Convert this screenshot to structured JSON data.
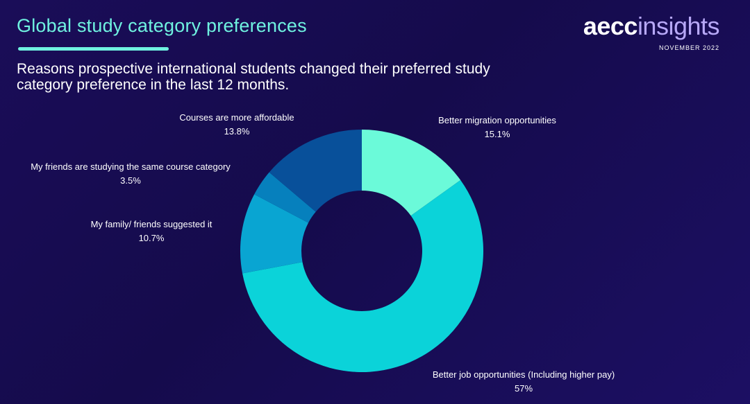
{
  "header": {
    "title": "Global study category preferences",
    "subtitle": "Reasons prospective international students changed their preferred study category preference in the last 12 months."
  },
  "brand": {
    "name_part1": "aecc",
    "name_part2": "insights",
    "date": "NOVEMBER 2022"
  },
  "colors": {
    "background": "#170c50",
    "accent": "#6ff2e0"
  },
  "chart_data": {
    "type": "pie",
    "donut": true,
    "title": "Reasons prospective international students changed their preferred study category preference in the last 12 months.",
    "slices": [
      {
        "label": "Better migration opportunities",
        "value": 15.1,
        "value_label": "15.1%",
        "color": "#6bfad9"
      },
      {
        "label": "Better job opportunities (Including higher pay)",
        "value": 57,
        "value_label": "57%",
        "color": "#0bd3d9"
      },
      {
        "label": "My family/ friends suggested it",
        "value": 10.7,
        "value_label": "10.7%",
        "color": "#09a5d2"
      },
      {
        "label": "My friends are studying the same course category",
        "value": 3.5,
        "value_label": "3.5%",
        "color": "#0680bd"
      },
      {
        "label": "Courses are more affordable",
        "value": 13.8,
        "value_label": "13.8%",
        "color": "#08509a"
      }
    ]
  }
}
